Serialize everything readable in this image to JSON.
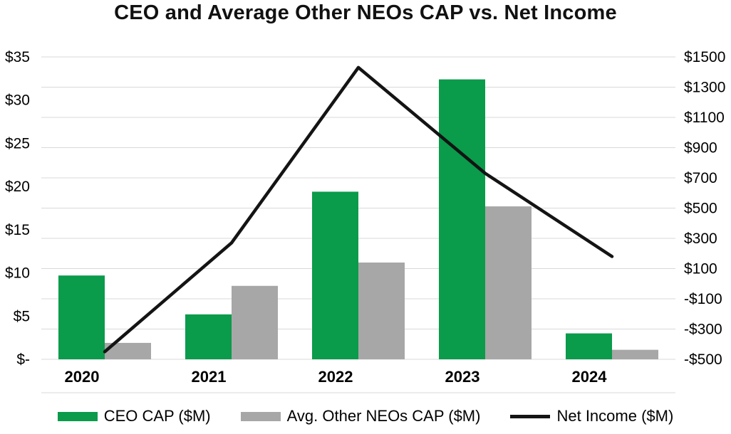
{
  "chart_data": {
    "type": "combo-bar-line",
    "title": "CEO and Average Other NEOs CAP vs. Net Income",
    "categories": [
      "2020",
      "2021",
      "2022",
      "2023",
      "2024"
    ],
    "bar_series": [
      {
        "name": "CEO CAP ($M)",
        "axis": "left",
        "color": "#0a9b4b",
        "values": [
          9.7,
          5.2,
          19.4,
          32.4,
          3.0
        ]
      },
      {
        "name": "Avg. Other NEOs CAP ($M)",
        "axis": "left",
        "color": "#a7a7a7",
        "values": [
          1.9,
          8.5,
          11.2,
          17.7,
          1.1
        ]
      }
    ],
    "line_series": [
      {
        "name": "Net Income ($M)",
        "axis": "right",
        "color": "#141414",
        "values": [
          -450,
          270,
          1430,
          730,
          180
        ]
      }
    ],
    "left_axis": {
      "min": 0,
      "max": 35,
      "tick_step": 5,
      "tick_labels": [
        "$-",
        "$5",
        "$10",
        "$15",
        "$20",
        "$25",
        "$30",
        "$35"
      ]
    },
    "right_axis": {
      "min": -500,
      "max": 1500,
      "tick_step": 200,
      "tick_labels": [
        "-$500",
        "-$300",
        "-$100",
        "$100",
        "$300",
        "$500",
        "$700",
        "$900",
        "$1100",
        "$1300",
        "$1500"
      ]
    },
    "grid": "horizontal",
    "gridline_color": "#d9d9d9",
    "legend_position": "bottom"
  }
}
